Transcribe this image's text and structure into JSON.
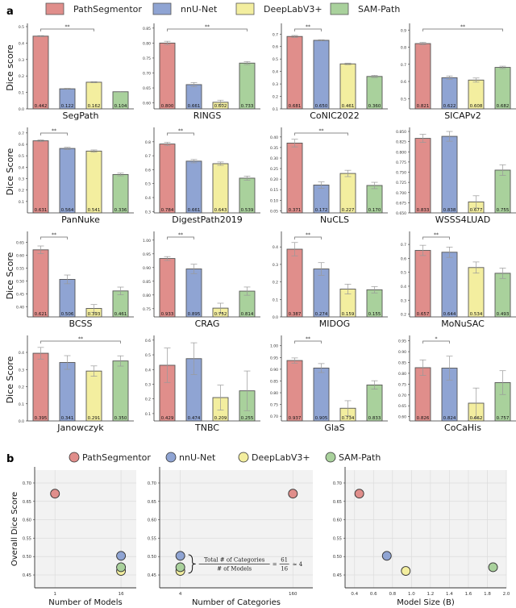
{
  "panel_labels": {
    "a": "a",
    "b": "b"
  },
  "legend": [
    {
      "name": "PathSegmentor",
      "color": "#e08e8b"
    },
    {
      "name": "nnU-Net",
      "color": "#8fa4d3"
    },
    {
      "name": "DeepLabV3+",
      "color": "#f3ee9f"
    },
    {
      "name": "SAM-Path",
      "color": "#a9d19c"
    }
  ],
  "chart_data": [
    {
      "type": "bar",
      "panel": "a",
      "ylabel": "Dice score",
      "series_names": [
        "PathSegmentor",
        "nnU-Net",
        "DeepLabV3+",
        "SAM-Path"
      ],
      "datasets": [
        {
          "title": "SegPath",
          "values": [
            0.442,
            0.122,
            0.162,
            0.104
          ],
          "errors": [
            0.003,
            0.003,
            0.003,
            0.002
          ],
          "ylim": [
            0.0,
            0.5
          ],
          "ticks": [
            0.0,
            0.1,
            0.2,
            0.3,
            0.4,
            0.5
          ],
          "tick_labels": [
            "0.0",
            "0.1",
            "0.2",
            "0.3",
            "0.4",
            "0.5"
          ],
          "sig": {
            "from": 0,
            "to": 2,
            "label": "**"
          }
        },
        {
          "title": "RINGS",
          "values": [
            0.8,
            0.661,
            0.602,
            0.733
          ],
          "errors": [
            0.006,
            0.007,
            0.007,
            0.005
          ],
          "ylim": [
            0.58,
            0.855
          ],
          "ticks": [
            0.6,
            0.65,
            0.7,
            0.75,
            0.8,
            0.85
          ],
          "tick_labels": [
            "0.60",
            "0.65",
            "0.70",
            "0.75",
            "0.80",
            "0.85"
          ],
          "sig": {
            "from": 0,
            "to": 3,
            "label": "**"
          }
        },
        {
          "title": "CoNIC2022",
          "values": [
            0.681,
            0.65,
            0.461,
            0.36
          ],
          "errors": [
            0.008,
            0.004,
            0.006,
            0.009
          ],
          "ylim": [
            0.1,
            0.76
          ],
          "ticks": [
            0.1,
            0.2,
            0.3,
            0.4,
            0.5,
            0.6,
            0.7
          ],
          "tick_labels": [
            "0.1",
            "0.2",
            "0.3",
            "0.4",
            "0.5",
            "0.6",
            "0.7"
          ],
          "sig": {
            "from": 0,
            "to": 1,
            "label": "**"
          }
        },
        {
          "title": "SICAPv2",
          "values": [
            0.821,
            0.622,
            0.608,
            0.682
          ],
          "errors": [
            0.007,
            0.01,
            0.012,
            0.007
          ],
          "ylim": [
            0.44,
            0.92
          ],
          "ticks": [
            0.5,
            0.6,
            0.7,
            0.8,
            0.9
          ],
          "tick_labels": [
            "0.5",
            "0.6",
            "0.7",
            "0.8",
            "0.9"
          ],
          "sig": {
            "from": 0,
            "to": 3,
            "label": "**"
          }
        },
        {
          "title": "PanNuke",
          "values": [
            0.631,
            0.564,
            0.541,
            0.336
          ],
          "errors": [
            0.008,
            0.01,
            0.01,
            0.012
          ],
          "ylim": [
            0.0,
            0.72
          ],
          "ticks": [
            0.1,
            0.2,
            0.3,
            0.4,
            0.5,
            0.6,
            0.7
          ],
          "tick_labels": [
            "0.1",
            "0.2",
            "0.3",
            "0.4",
            "0.5",
            "0.6",
            "0.7"
          ],
          "sig": {
            "from": 0,
            "to": 1,
            "label": "**"
          }
        },
        {
          "title": "DigestPath2019",
          "values": [
            0.784,
            0.661,
            0.643,
            0.539
          ],
          "errors": [
            0.012,
            0.012,
            0.012,
            0.015
          ],
          "ylim": [
            0.29,
            0.88
          ],
          "ticks": [
            0.3,
            0.4,
            0.5,
            0.6,
            0.7,
            0.8
          ],
          "tick_labels": [
            "0.3",
            "0.4",
            "0.5",
            "0.6",
            "0.7",
            "0.8"
          ],
          "sig": {
            "from": 0,
            "to": 1,
            "label": "**"
          }
        },
        {
          "title": "NuCLS",
          "values": [
            0.371,
            0.172,
            0.227,
            0.17
          ],
          "errors": [
            0.018,
            0.015,
            0.015,
            0.015
          ],
          "ylim": [
            0.04,
            0.43
          ],
          "ticks": [
            0.05,
            0.1,
            0.15,
            0.2,
            0.25,
            0.3,
            0.35,
            0.4
          ],
          "tick_labels": [
            "0.05",
            "0.10",
            "0.15",
            "0.20",
            "0.25",
            "0.30",
            "0.35",
            "0.40"
          ],
          "sig": {
            "from": 0,
            "to": 2,
            "label": "**"
          }
        },
        {
          "title": "WSSS4LUAD",
          "values": [
            0.833,
            0.838,
            0.677,
            0.755
          ],
          "errors": [
            0.01,
            0.012,
            0.015,
            0.013
          ],
          "ylim": [
            0.65,
            0.852
          ],
          "ticks": [
            0.65,
            0.675,
            0.7,
            0.725,
            0.75,
            0.775,
            0.8,
            0.825,
            0.85
          ],
          "tick_labels": [
            "0.650",
            "0.675",
            "0.700",
            "0.725",
            "0.750",
            "0.775",
            "0.800",
            "0.825",
            "0.850"
          ],
          "sig": null
        },
        {
          "title": "BCSS",
          "values": [
            0.621,
            0.506,
            0.393,
            0.461
          ],
          "errors": [
            0.015,
            0.017,
            0.015,
            0.015
          ],
          "ylim": [
            0.36,
            0.68
          ],
          "ticks": [
            0.4,
            0.45,
            0.5,
            0.55,
            0.6,
            0.65
          ],
          "tick_labels": [
            "0.40",
            "0.45",
            "0.50",
            "0.55",
            "0.60",
            "0.65"
          ],
          "sig": {
            "from": 0,
            "to": 1,
            "label": "**"
          }
        },
        {
          "title": "CRAG",
          "values": [
            0.933,
            0.895,
            0.752,
            0.814
          ],
          "errors": [
            0.007,
            0.017,
            0.018,
            0.015
          ],
          "ylim": [
            0.72,
            1.02
          ],
          "ticks": [
            0.75,
            0.8,
            0.85,
            0.9,
            0.95,
            1.0
          ],
          "tick_labels": [
            "0.75",
            "0.80",
            "0.85",
            "0.90",
            "0.95",
            "1.00"
          ],
          "sig": {
            "from": 0,
            "to": 1,
            "label": "**"
          }
        },
        {
          "title": "MIDOG",
          "values": [
            0.387,
            0.274,
            0.159,
            0.155
          ],
          "errors": [
            0.038,
            0.036,
            0.028,
            0.018
          ],
          "ylim": [
            0.0,
            0.47
          ],
          "ticks": [
            0.0,
            0.1,
            0.2,
            0.3,
            0.4
          ],
          "tick_labels": [
            "0.0",
            "0.1",
            "0.2",
            "0.3",
            "0.4"
          ],
          "sig": {
            "from": 0,
            "to": 1,
            "label": "**"
          }
        },
        {
          "title": "MoNuSAC",
          "values": [
            0.657,
            0.644,
            0.534,
            0.493
          ],
          "errors": [
            0.037,
            0.037,
            0.04,
            0.037
          ],
          "ylim": [
            0.18,
            0.77
          ],
          "ticks": [
            0.2,
            0.3,
            0.4,
            0.5,
            0.6,
            0.7
          ],
          "tick_labels": [
            "0.2",
            "0.3",
            "0.4",
            "0.5",
            "0.6",
            "0.7"
          ],
          "sig": {
            "from": 0,
            "to": 1,
            "label": "**"
          }
        },
        {
          "title": "Janowczyk",
          "values": [
            0.395,
            0.341,
            0.291,
            0.35
          ],
          "errors": [
            0.034,
            0.04,
            0.03,
            0.03
          ],
          "ylim": [
            0.0,
            0.48
          ],
          "ticks": [
            0.0,
            0.1,
            0.2,
            0.3,
            0.4
          ],
          "tick_labels": [
            "0.0",
            "0.1",
            "0.2",
            "0.3",
            "0.4"
          ],
          "sig": {
            "from": 0,
            "to": 3,
            "label": "**"
          }
        },
        {
          "title": "TNBC",
          "values": [
            0.429,
            0.474,
            0.209,
            0.255
          ],
          "errors": [
            0.117,
            0.108,
            0.085,
            0.135
          ],
          "ylim": [
            0.05,
            0.61
          ],
          "ticks": [
            0.1,
            0.2,
            0.3,
            0.4,
            0.5,
            0.6
          ],
          "tick_labels": [
            "0.1",
            "0.2",
            "0.3",
            "0.4",
            "0.5",
            "0.6"
          ],
          "sig": null
        },
        {
          "title": "GlaS",
          "values": [
            0.937,
            0.905,
            0.734,
            0.833
          ],
          "errors": [
            0.011,
            0.019,
            0.032,
            0.018
          ],
          "ylim": [
            0.68,
            1.03
          ],
          "ticks": [
            0.7,
            0.75,
            0.8,
            0.85,
            0.9,
            0.95,
            1.0
          ],
          "tick_labels": [
            "0.70",
            "0.75",
            "0.80",
            "0.85",
            "0.90",
            "0.95",
            "1.00"
          ],
          "sig": {
            "from": 0,
            "to": 1,
            "label": "**"
          }
        },
        {
          "title": "CoCaHis",
          "values": [
            0.826,
            0.824,
            0.662,
            0.757
          ],
          "errors": [
            0.036,
            0.055,
            0.07,
            0.055
          ],
          "ylim": [
            0.58,
            0.96
          ],
          "ticks": [
            0.6,
            0.65,
            0.7,
            0.75,
            0.8,
            0.85,
            0.9,
            0.95
          ],
          "tick_labels": [
            "0.60",
            "0.65",
            "0.70",
            "0.75",
            "0.80",
            "0.85",
            "0.90",
            "0.95"
          ],
          "sig": {
            "from": 0,
            "to": 1,
            "label": "*"
          }
        }
      ]
    },
    {
      "type": "scatter",
      "panel": "b",
      "title": "",
      "xlabel": "Number of Models",
      "ylabel": "Overall Dice Score",
      "xcategories": [
        "1",
        "16"
      ],
      "ylim": [
        0.415,
        0.735
      ],
      "yticks": [
        0.45,
        0.5,
        0.55,
        0.6,
        0.65,
        0.7
      ],
      "ytick_labels": [
        "0.45",
        "0.50",
        "0.55",
        "0.60",
        "0.65",
        "0.70"
      ],
      "grid": true,
      "points": [
        {
          "series": "PathSegmentor",
          "x": "1",
          "y": 0.671
        },
        {
          "series": "DeepLabV3+",
          "x": "16",
          "y": 0.461
        },
        {
          "series": "SAM-Path",
          "x": "16",
          "y": 0.471
        },
        {
          "series": "nnU-Net",
          "x": "16",
          "y": 0.502
        }
      ]
    },
    {
      "type": "scatter",
      "panel": "b",
      "title": "",
      "xlabel": "Number of Categories",
      "ylabel": "",
      "xcategories": [
        "4",
        "160"
      ],
      "ylim": [
        0.415,
        0.735
      ],
      "yticks": [
        0.45,
        0.5,
        0.55,
        0.6,
        0.65,
        0.7
      ],
      "ytick_labels": [
        "0.45",
        "0.50",
        "0.55",
        "0.60",
        "0.65",
        "0.70"
      ],
      "grid": true,
      "points": [
        {
          "series": "PathSegmentor",
          "x": "160",
          "y": 0.671
        },
        {
          "series": "DeepLabV3+",
          "x": "4",
          "y": 0.461
        },
        {
          "series": "SAM-Path",
          "x": "4",
          "y": 0.471
        },
        {
          "series": "nnU-Net",
          "x": "4",
          "y": 0.502
        }
      ],
      "annotation": {
        "numerator": "Total # of Categories",
        "denominator": "# of Models",
        "equals": "=",
        "frac_num": "61",
        "frac_den": "16",
        "approx": "≈ 4"
      }
    },
    {
      "type": "scatter",
      "panel": "b",
      "title": "",
      "xlabel": "Model Size (B)",
      "ylabel": "",
      "xlim": [
        0.3,
        2.0
      ],
      "xticks": [
        0.4,
        0.6,
        0.8,
        1.0,
        1.2,
        1.4,
        1.6,
        1.8,
        2.0
      ],
      "xtick_labels": [
        "0.4",
        "0.6",
        "0.8",
        "1.0",
        "1.2",
        "1.4",
        "1.6",
        "1.8",
        "2.0"
      ],
      "ylim": [
        0.415,
        0.735
      ],
      "yticks": [
        0.45,
        0.5,
        0.55,
        0.6,
        0.65,
        0.7
      ],
      "ytick_labels": [
        "0.45",
        "0.50",
        "0.55",
        "0.60",
        "0.65",
        "0.70"
      ],
      "grid": true,
      "points": [
        {
          "series": "PathSegmentor",
          "x": 0.45,
          "y": 0.671
        },
        {
          "series": "nnU-Net",
          "x": 0.74,
          "y": 0.502
        },
        {
          "series": "DeepLabV3+",
          "x": 0.94,
          "y": 0.461
        },
        {
          "series": "SAM-Path",
          "x": 1.86,
          "y": 0.471
        }
      ]
    }
  ]
}
